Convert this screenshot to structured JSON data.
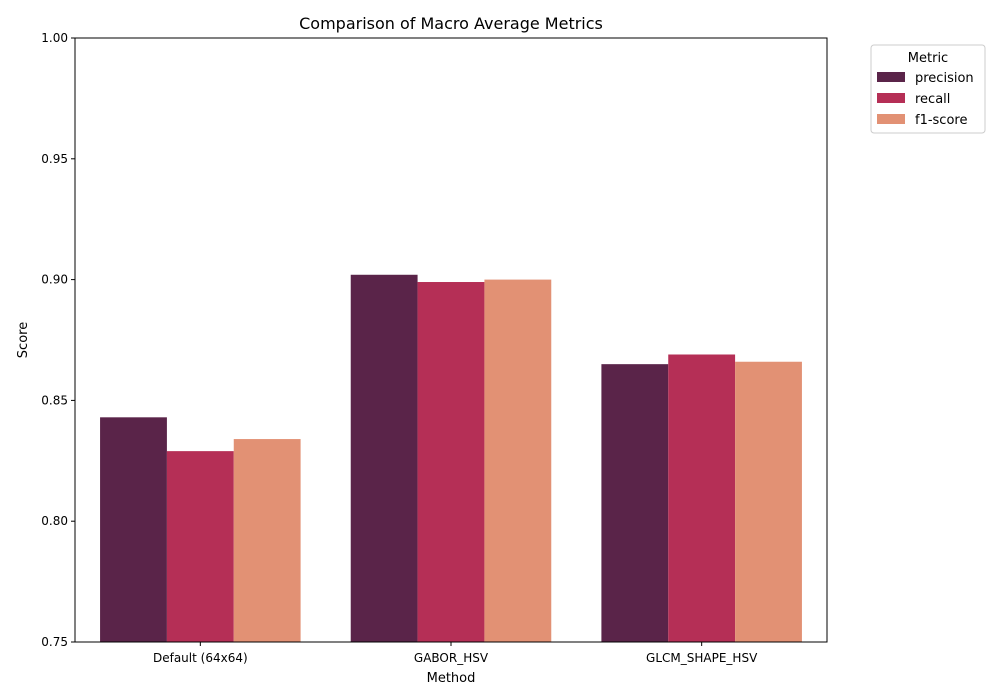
{
  "chart_data": {
    "type": "bar",
    "title": "Comparison of Macro Average Metrics",
    "xlabel": "Method",
    "ylabel": "Score",
    "ylim": [
      0.75,
      1.0
    ],
    "yticks": [
      "0.75",
      "0.80",
      "0.85",
      "0.90",
      "0.95",
      "1.00"
    ],
    "categories": [
      "Default (64x64)",
      "GABOR_HSV",
      "GLCM_SHAPE_HSV"
    ],
    "series": [
      {
        "name": "precision",
        "color": "#5a2449",
        "values": [
          0.843,
          0.902,
          0.865
        ]
      },
      {
        "name": "recall",
        "color": "#b52f56",
        "values": [
          0.829,
          0.899,
          0.869
        ]
      },
      {
        "name": "f1-score",
        "color": "#e29174",
        "values": [
          0.834,
          0.9,
          0.866
        ]
      }
    ],
    "grid": false,
    "legend": {
      "title": "Metric",
      "placement": "outside-top-right"
    }
  }
}
